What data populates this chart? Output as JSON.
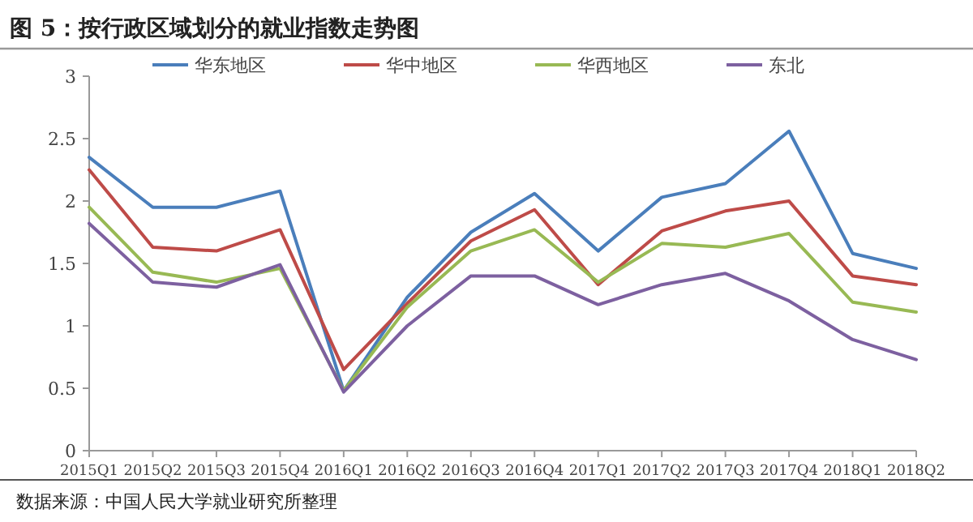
{
  "chart_data": {
    "type": "line",
    "title": "图 5：按行政区域划分的就业指数走势图",
    "categories": [
      "2015Q1",
      "2015Q2",
      "2015Q3",
      "2015Q4",
      "2016Q1",
      "2016Q2",
      "2016Q3",
      "2016Q4",
      "2017Q1",
      "2017Q2",
      "2017Q3",
      "2017Q4",
      "2018Q1",
      "2018Q2"
    ],
    "series": [
      {
        "name": "华东地区",
        "color": "#4a7ebb",
        "values": [
          2.35,
          1.95,
          1.95,
          2.08,
          0.48,
          1.23,
          1.75,
          2.06,
          1.6,
          2.03,
          2.14,
          2.56,
          1.58,
          1.46
        ]
      },
      {
        "name": "华中地区",
        "color": "#be4b48",
        "values": [
          2.25,
          1.63,
          1.6,
          1.77,
          0.65,
          1.18,
          1.68,
          1.93,
          1.33,
          1.76,
          1.92,
          2.0,
          1.4,
          1.33
        ]
      },
      {
        "name": "华西地区",
        "color": "#98b954",
        "values": [
          1.95,
          1.43,
          1.35,
          1.46,
          0.48,
          1.15,
          1.6,
          1.77,
          1.35,
          1.66,
          1.63,
          1.74,
          1.19,
          1.11
        ]
      },
      {
        "name": "东北",
        "color": "#7d60a0",
        "values": [
          1.82,
          1.35,
          1.31,
          1.49,
          0.47,
          1.0,
          1.4,
          1.4,
          1.17,
          1.33,
          1.42,
          1.2,
          0.89,
          0.73
        ]
      }
    ],
    "ylim": [
      0,
      3
    ],
    "yticks": [
      0,
      0.5,
      1,
      1.5,
      2,
      2.5,
      3
    ],
    "legend": "top",
    "grid": false,
    "marker": "none",
    "line_style": "solid",
    "annotations": [
      "数据来源：中国人民大学就业研究所整理"
    ]
  }
}
